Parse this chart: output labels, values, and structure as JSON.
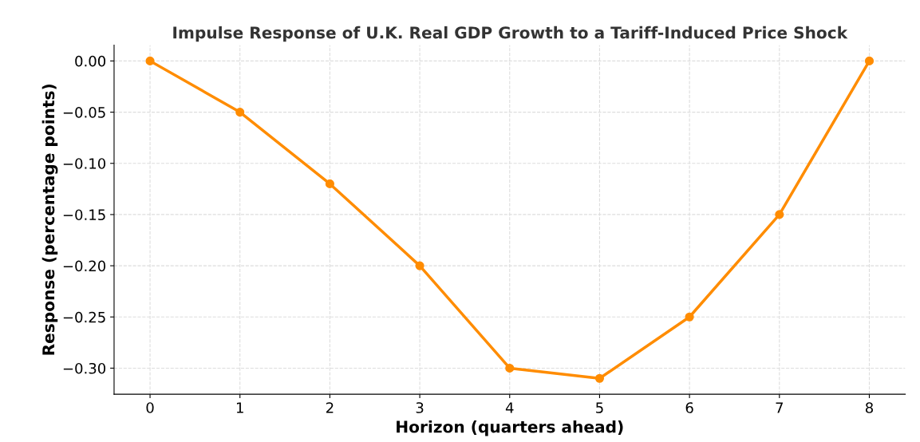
{
  "chart_data": {
    "type": "line",
    "title": "Impulse Response of U.K. Real GDP Growth to a Tariff-Induced Price Shock",
    "xlabel": "Horizon (quarters ahead)",
    "ylabel": "Response (percentage points)",
    "x": [
      0,
      1,
      2,
      3,
      4,
      5,
      6,
      7,
      8
    ],
    "series": [
      {
        "color": "#ff8c00",
        "values": [
          0.0,
          -0.05,
          -0.12,
          -0.2,
          -0.3,
          -0.31,
          -0.25,
          -0.15,
          0.0
        ]
      }
    ],
    "xlim": [
      -0.4,
      8.4
    ],
    "xticks": [
      0,
      1,
      2,
      3,
      4,
      5,
      6,
      7,
      8
    ],
    "ylim": [
      -0.3255,
      0.0155
    ],
    "yticks": [
      {
        "value": 0.0,
        "label": "0.00"
      },
      {
        "value": -0.05,
        "label": "−0.05"
      },
      {
        "value": -0.1,
        "label": "−0.10"
      },
      {
        "value": -0.15,
        "label": "−0.15"
      },
      {
        "value": -0.2,
        "label": "−0.20"
      },
      {
        "value": -0.25,
        "label": "−0.25"
      },
      {
        "value": -0.3,
        "label": "−0.30"
      }
    ],
    "grid": true,
    "marker": "circle",
    "line_style": "solid"
  }
}
